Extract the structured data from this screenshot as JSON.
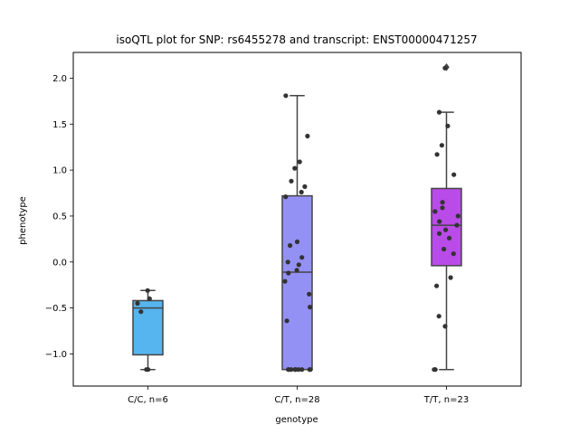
{
  "chart_data": {
    "type": "box",
    "title": "isoQTL plot for SNP: rs6455278 and transcript: ENST00000471257",
    "xlabel": "genotype",
    "ylabel": "phenotype",
    "ylim": [
      -1.35,
      2.28
    ],
    "yticks": [
      -1.0,
      -0.5,
      0.0,
      0.5,
      1.0,
      1.5,
      2.0
    ],
    "ytick_labels": [
      "−1.0",
      "−0.5",
      "0.0",
      "0.5",
      "1.0",
      "1.5",
      "2.0"
    ],
    "grid": false,
    "categories": [
      "C/C, n=6",
      "C/T, n=28",
      "T/T, n=23"
    ],
    "series": [
      {
        "color": "#56b4ee",
        "box": {
          "whisker_low": -1.17,
          "q1": -1.01,
          "median": -0.5,
          "q3": -0.42,
          "whisker_high": -0.31
        },
        "outliers": [],
        "points": [
          -0.31,
          -0.4,
          -0.45,
          -0.54,
          -1.17,
          -1.17
        ]
      },
      {
        "color": "#9491f5",
        "box": {
          "whisker_low": -1.17,
          "q1": -1.17,
          "median": -0.11,
          "q3": 0.72,
          "whisker_high": 1.81
        },
        "outliers": [],
        "points": [
          1.81,
          1.37,
          1.09,
          1.02,
          0.88,
          0.82,
          0.76,
          0.71,
          0.22,
          0.18,
          0.05,
          0.0,
          -0.03,
          -0.09,
          -0.12,
          -0.21,
          -0.35,
          -0.49,
          -0.64,
          -1.17,
          -1.17,
          -1.17,
          -1.17,
          -1.17,
          -1.17,
          -1.17,
          -1.17,
          -1.17
        ]
      },
      {
        "color": "#b94be8",
        "box": {
          "whisker_low": -1.17,
          "q1": -0.04,
          "median": 0.4,
          "q3": 0.8,
          "whisker_high": 1.63
        },
        "outliers": [
          2.12
        ],
        "points": [
          2.11,
          1.63,
          1.48,
          1.27,
          1.17,
          0.95,
          0.65,
          0.59,
          0.55,
          0.5,
          0.44,
          0.4,
          0.35,
          0.31,
          0.26,
          0.14,
          0.09,
          -0.17,
          -0.26,
          -0.59,
          -0.7,
          -1.17,
          -1.17
        ]
      }
    ]
  }
}
